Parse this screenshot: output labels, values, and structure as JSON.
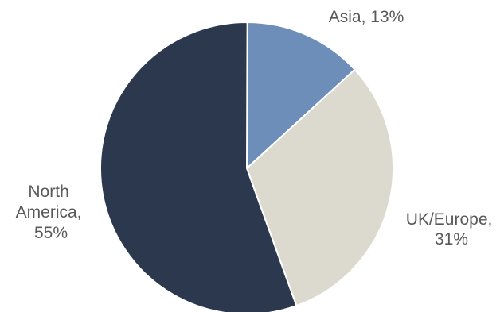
{
  "chart_data": {
    "type": "pie",
    "title": "",
    "slices": [
      {
        "name": "Asia",
        "value": 13,
        "label_lines": [
          "Asia, 13%"
        ],
        "color": "#6c8eb8"
      },
      {
        "name": "UK/Europe",
        "value": 31,
        "label_lines": [
          "UK/Europe,",
          "31%"
        ],
        "color": "#dcd9cf"
      },
      {
        "name": "North America",
        "value": 55,
        "label_lines": [
          "North",
          "America,",
          "55%"
        ],
        "color": "#2c384d"
      }
    ],
    "slice_border_color": "#ffffff",
    "label_color": "#595959",
    "legend": "none",
    "start": "top, clockwise"
  }
}
